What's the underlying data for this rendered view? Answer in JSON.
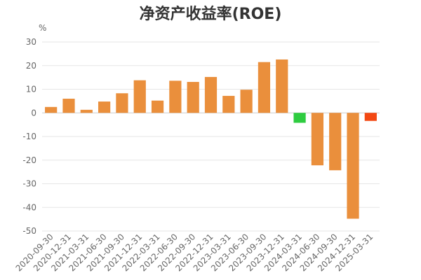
{
  "chart_data": {
    "type": "bar",
    "title": "净资产收益率(ROE)",
    "xlabel": "",
    "ylabel": "",
    "y_unit": "%",
    "ylim": [
      -50,
      30
    ],
    "yticks": [
      30,
      20,
      10,
      0,
      -10,
      -20,
      -30,
      -40,
      -50
    ],
    "grid": true,
    "legend": "none",
    "categories": [
      "2020-09-30",
      "2020-12-31",
      "2021-03-31",
      "2021-06-30",
      "2021-09-30",
      "2021-12-31",
      "2022-03-31",
      "2022-06-30",
      "2022-09-30",
      "2022-12-31",
      "2023-03-31",
      "2023-06-30",
      "2023-09-30",
      "2023-12-31",
      "2024-03-31",
      "2024-06-30",
      "2024-09-30",
      "2024-12-31",
      "2025-03-31"
    ],
    "values": [
      2.5,
      6.0,
      1.3,
      4.8,
      8.3,
      13.8,
      5.2,
      13.6,
      13.1,
      15.2,
      7.2,
      9.8,
      21.5,
      22.6,
      -4.2,
      -22.2,
      -24.3,
      -44.8,
      -3.4
    ],
    "bar_colors": [
      "#ea8f3c",
      "#ea8f3c",
      "#ea8f3c",
      "#ea8f3c",
      "#ea8f3c",
      "#ea8f3c",
      "#ea8f3c",
      "#ea8f3c",
      "#ea8f3c",
      "#ea8f3c",
      "#ea8f3c",
      "#ea8f3c",
      "#ea8f3c",
      "#ea8f3c",
      "#2ecc40",
      "#ea8f3c",
      "#ea8f3c",
      "#ea8f3c",
      "#f34813"
    ]
  },
  "colors": {
    "grid": "#e6e6e6",
    "axis": "#cccccc",
    "text": "#666666"
  }
}
